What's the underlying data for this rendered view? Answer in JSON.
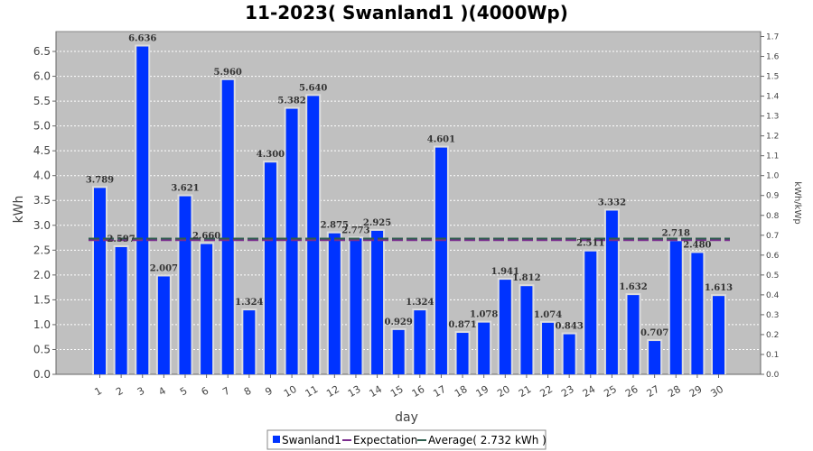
{
  "chart_data": {
    "type": "bar",
    "title": "11-2023( Swanland1 )(4000Wp)",
    "xlabel": "day",
    "ylabel": "kWh",
    "y2label": "kWh/kWp",
    "ylim": [
      0,
      6.9
    ],
    "y2lim": [
      0,
      1.725
    ],
    "yticks": [
      "0.0",
      "0.5",
      "1.0",
      "1.5",
      "2.0",
      "2.5",
      "3.0",
      "3.5",
      "4.0",
      "4.5",
      "5.0",
      "5.5",
      "6.0",
      "6.5"
    ],
    "y2ticks": [
      "0.0",
      "0.1",
      "0.2",
      "0.3",
      "0.4",
      "0.5",
      "0.6",
      "0.7",
      "0.8",
      "0.9",
      "1.0",
      "1.1",
      "1.2",
      "1.3",
      "1.4",
      "1.5",
      "1.6",
      "1.7"
    ],
    "categories": [
      "1",
      "2",
      "3",
      "4",
      "5",
      "6",
      "7",
      "8",
      "9",
      "10",
      "11",
      "12",
      "13",
      "14",
      "15",
      "16",
      "17",
      "18",
      "19",
      "20",
      "21",
      "22",
      "23",
      "24",
      "25",
      "26",
      "27",
      "28",
      "29",
      "30"
    ],
    "series": [
      {
        "name": "Swanland1",
        "color": "#0033ff",
        "values": [
          3.789,
          2.597,
          6.636,
          2.007,
          3.621,
          2.66,
          5.96,
          1.324,
          4.3,
          5.382,
          5.64,
          2.875,
          2.773,
          2.925,
          0.929,
          1.324,
          4.601,
          0.871,
          1.078,
          1.941,
          1.812,
          1.074,
          0.843,
          2.511,
          3.332,
          1.632,
          0.707,
          2.718,
          2.48,
          1.613
        ],
        "labels": [
          "3.789",
          "2.597",
          "6.636",
          "2.007",
          "3.621",
          "2.660",
          "5.960",
          "1.324",
          "4.300",
          "5.382",
          "5.640",
          "2.875",
          "2.773",
          "2.925",
          "0.929",
          "1.324",
          "4.601",
          "0.871",
          "1.078",
          "1.941",
          "1.812",
          "1.074",
          "0.843",
          "2.511",
          "3.332",
          "1.632",
          "0.707",
          "2.718",
          "2.480",
          "1.613"
        ]
      }
    ],
    "lines": [
      {
        "name": "Expectation",
        "color": "#7b2d8e",
        "value": 2.7
      },
      {
        "name": "Average( 2.732 kWh )",
        "color": "#2e5e4e",
        "value": 2.732
      }
    ],
    "legend_position": "bottom",
    "grid": true
  }
}
